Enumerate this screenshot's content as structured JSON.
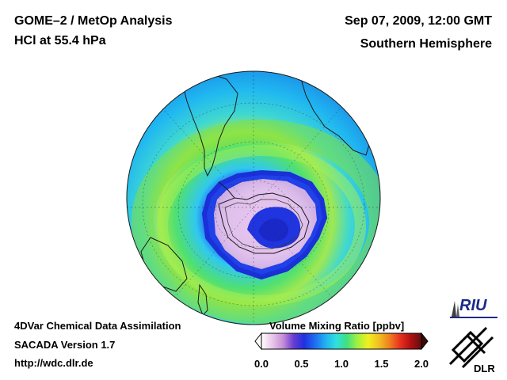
{
  "header": {
    "title_line1": "GOME–2 / MetOp Analysis",
    "title_line2": "HCl at 55.4 hPa",
    "datetime": "Sep 07, 2009, 12:00 GMT",
    "region": "Southern Hemisphere"
  },
  "footer": {
    "line1": "4DVar Chemical Data Assimilation",
    "line2": "SACADA Version 1.7",
    "url": "http://wdc.dlr.de"
  },
  "colorbar": {
    "label": "Volume Mixing Ratio [ppbv]",
    "ticks": [
      "0.0",
      "0.5",
      "1.0",
      "1.5",
      "2.0"
    ],
    "range": [
      0.0,
      2.0
    ],
    "stops": [
      "#ffffff",
      "#e8c8e8",
      "#c890d8",
      "#6a3cd0",
      "#2030e0",
      "#1e6cf0",
      "#20b0f0",
      "#30e0e0",
      "#40e080",
      "#a0f040",
      "#f0f020",
      "#f0c020",
      "#f08020",
      "#e83020",
      "#b01010",
      "#601010"
    ]
  },
  "logos": {
    "riu": "RIU",
    "dlr": "DLR"
  },
  "icons": {
    "globe": "southern-hemisphere-globe",
    "dlr_logo": "dlr-logo-icon",
    "riu_logo": "riu-logo-icon"
  }
}
